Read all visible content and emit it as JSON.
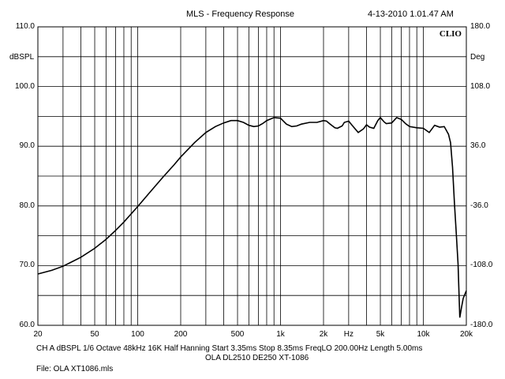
{
  "header": {
    "title": "MLS - Frequency Response",
    "timestamp": "4-13-2010 1.01.47 AM",
    "brand": "CLIO"
  },
  "footer": {
    "settings": "CH A   dBSPL   1/6 Octave   48kHz   16K   Half Hanning   Start 3.35ms     Stop 8.35ms     FreqLO 200.00Hz    Length 5.00ms",
    "subtitle": "OLA DL2510 DE250 XT-1086",
    "file": "File: OLA XT1086.mls"
  },
  "chart_data": {
    "type": "line",
    "title": "MLS - Frequency Response",
    "xlabel": "Hz",
    "ylabel": "dBSPL",
    "y2label": "Deg",
    "xscale": "log",
    "xlim": [
      20,
      20000
    ],
    "ylim": [
      60,
      110
    ],
    "y2lim": [
      -180,
      180
    ],
    "grid": true,
    "x_tick_labels": [
      "20",
      "50",
      "100",
      "200",
      "500",
      "1k",
      "2k",
      "Hz",
      "5k",
      "10k",
      "20k"
    ],
    "x_tick_values": [
      20,
      50,
      100,
      200,
      500,
      1000,
      2000,
      3000,
      5000,
      10000,
      20000
    ],
    "y_tick_labels": [
      "60.0",
      "70.0",
      "80.0",
      "90.0",
      "100.0",
      "110.0"
    ],
    "y2_tick_labels": [
      "-180.0",
      "-108.0",
      "-36.0",
      "36.0",
      "108.0",
      "180.0"
    ],
    "series": [
      {
        "x": [
          20,
          25,
          30,
          35,
          40,
          50,
          60,
          70,
          80,
          100,
          120,
          150,
          180,
          200,
          250,
          300,
          350,
          400,
          450,
          500,
          550,
          600,
          650,
          700,
          750,
          800,
          900,
          1000,
          1100,
          1200,
          1300,
          1400,
          1600,
          1800,
          2000,
          2100,
          2200,
          2400,
          2500,
          2700,
          2800,
          3000,
          3200,
          3500,
          3800,
          4000,
          4200,
          4500,
          4800,
          5000,
          5300,
          5500,
          6000,
          6500,
          7000,
          7500,
          8000,
          9000,
          10000,
          11000,
          12000,
          13000,
          14000,
          15000,
          15500,
          16000,
          16500,
          17000,
          17500,
          18000,
          18500,
          19000,
          20000
        ],
        "values": [
          68.6,
          69.2,
          69.9,
          70.7,
          71.4,
          72.9,
          74.4,
          75.9,
          77.3,
          79.9,
          82.1,
          84.8,
          86.9,
          88.2,
          90.6,
          92.3,
          93.3,
          93.9,
          94.3,
          94.3,
          94.0,
          93.5,
          93.3,
          93.4,
          93.8,
          94.3,
          94.8,
          94.7,
          93.7,
          93.3,
          93.4,
          93.7,
          94.0,
          94.0,
          94.3,
          94.2,
          93.8,
          93.1,
          93.0,
          93.4,
          94.0,
          94.2,
          93.4,
          92.3,
          92.9,
          93.6,
          93.2,
          93.0,
          94.3,
          94.8,
          94.1,
          93.8,
          93.9,
          94.8,
          94.5,
          93.8,
          93.3,
          93.1,
          93.0,
          92.3,
          93.5,
          93.2,
          93.3,
          92.0,
          90.6,
          86.5,
          80.5,
          75.5,
          70.3,
          61.3,
          63.0,
          64.5,
          65.8
        ]
      }
    ]
  }
}
